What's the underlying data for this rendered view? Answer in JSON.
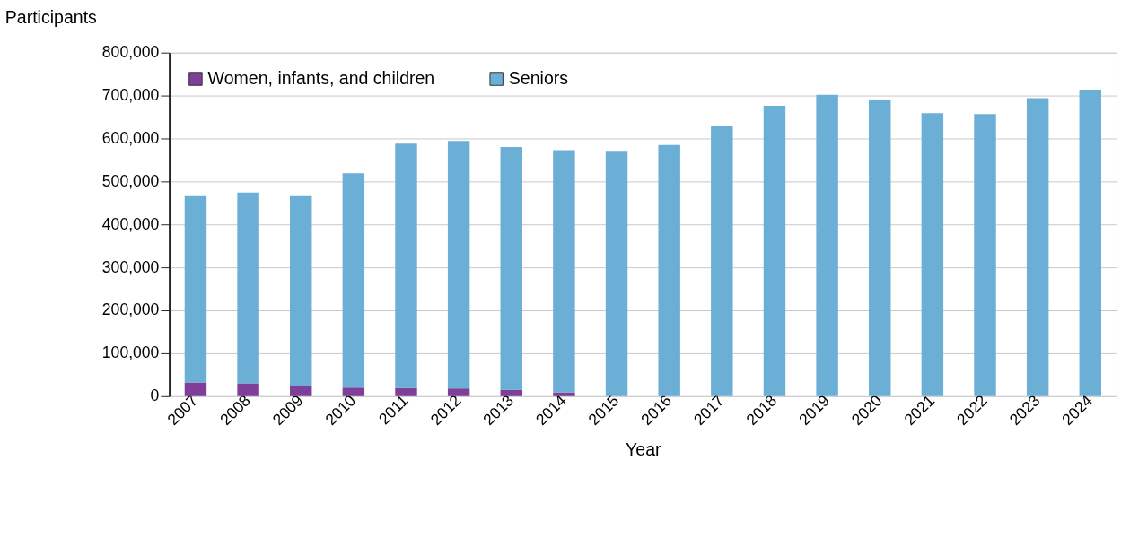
{
  "chart_data": {
    "type": "bar",
    "stacked": true,
    "xlabel": "Year",
    "ylabel": "Participants",
    "categories": [
      "2007",
      "2008",
      "2009",
      "2010",
      "2011",
      "2012",
      "2013",
      "2014",
      "2015",
      "2016",
      "2017",
      "2018",
      "2019",
      "2020",
      "2021",
      "2022",
      "2023",
      "2024"
    ],
    "series": [
      {
        "name": "Women, infants, and children",
        "color": "#7f3f98",
        "values": [
          32000,
          30000,
          23000,
          20000,
          19000,
          18000,
          15000,
          9000,
          0,
          0,
          0,
          0,
          0,
          0,
          0,
          0,
          0,
          0
        ]
      },
      {
        "name": "Seniors",
        "color": "#6baed6",
        "values": [
          434000,
          444000,
          443000,
          499000,
          569000,
          576000,
          565000,
          564000,
          571000,
          585000,
          629000,
          676000,
          702000,
          691000,
          659000,
          657000,
          694000,
          714000
        ]
      }
    ],
    "ylim": [
      0,
      800000
    ],
    "yticks": [
      {
        "value": 0,
        "label": "0"
      },
      {
        "value": 100000,
        "label": "100,000"
      },
      {
        "value": 200000,
        "label": "200,000"
      },
      {
        "value": 300000,
        "label": "300,000"
      },
      {
        "value": 400000,
        "label": "400,000"
      },
      {
        "value": 500000,
        "label": "500,000"
      },
      {
        "value": 600000,
        "label": "600,000"
      },
      {
        "value": 700000,
        "label": "700,000"
      },
      {
        "value": 800000,
        "label": "800,000"
      }
    ],
    "grid": "y",
    "legend": "top left"
  }
}
